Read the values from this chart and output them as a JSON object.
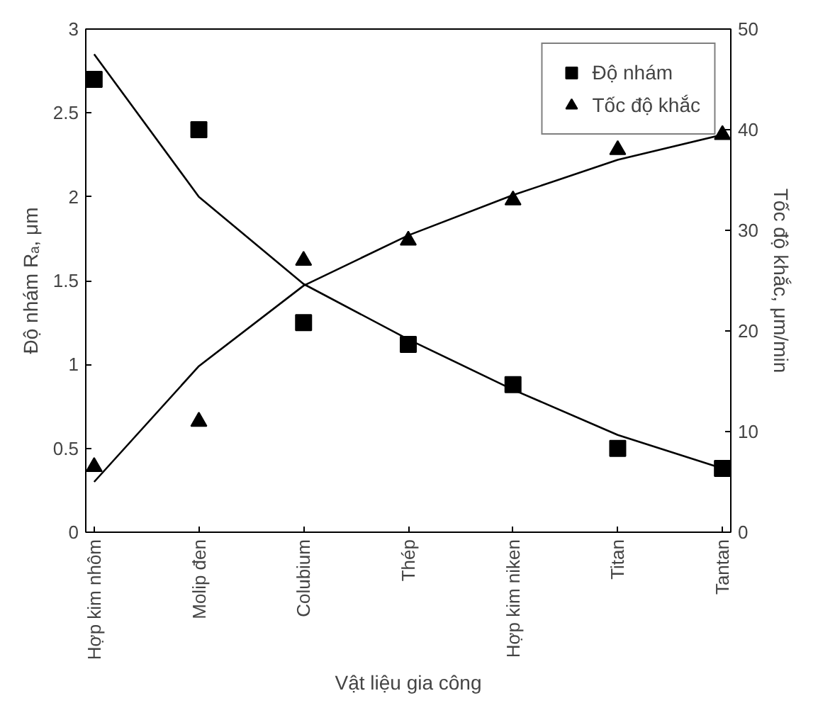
{
  "chart_data": {
    "type": "scatter",
    "xlabel": "Vật liệu gia công",
    "ylabel": "Độ nhám Rₐ, μm",
    "y2label": "Tốc độ khắc, μm/min",
    "categories": [
      "Hợp kim nhôm",
      "Molip đen",
      "Colubium",
      "Thép",
      "Hợp kim niken",
      "Titan",
      "Tantan"
    ],
    "series": [
      {
        "name": "Độ nhám",
        "marker": "square",
        "color": "#000000",
        "values": [
          2.7,
          2.4,
          1.25,
          1.12,
          0.88,
          0.5,
          0.38
        ]
      },
      {
        "name": "Tốc độ khắc",
        "marker": "triangle",
        "axis": "y2",
        "color": "#000000",
        "values": [
          6.5,
          11,
          27,
          29,
          33,
          38,
          39.5
        ]
      },
      {
        "type": "line",
        "color": "#000000",
        "marker": "none",
        "values": [
          2.85,
          2.0,
          1.48,
          1.15,
          0.85,
          0.58,
          0.38
        ]
      },
      {
        "type": "line",
        "axis": "y2",
        "color": "#000000",
        "marker": "none",
        "values": [
          5,
          16.5,
          24.5,
          29.5,
          33.5,
          37,
          39.5
        ]
      }
    ],
    "ylim": [
      0,
      3
    ],
    "yticks": [
      0,
      0.5,
      1,
      1.5,
      2,
      2.5,
      3
    ],
    "y2lim": [
      0,
      50
    ],
    "y2ticks": [
      0,
      10,
      20,
      30,
      40,
      50
    ],
    "grid": false,
    "legend": "top right"
  }
}
